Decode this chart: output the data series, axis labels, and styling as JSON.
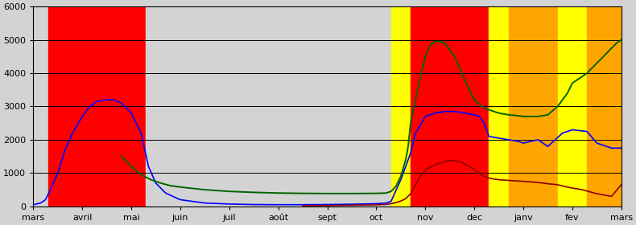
{
  "ylim": [
    0,
    6000
  ],
  "yticks": [
    0,
    1000,
    2000,
    3000,
    4000,
    5000,
    6000
  ],
  "xlabels": [
    "mars",
    "avril",
    "mai",
    "juin",
    "juil",
    "août",
    "sept",
    "oct",
    "nov",
    "dec",
    "janv",
    "fev",
    "mars"
  ],
  "bg_color": "#d3d3d3",
  "zones": [
    [
      0.0,
      0.3,
      "#d3d3d3"
    ],
    [
      0.3,
      2.3,
      "#ff0000"
    ],
    [
      2.3,
      7.3,
      "#d3d3d3"
    ],
    [
      7.3,
      7.7,
      "#ffff00"
    ],
    [
      7.7,
      9.3,
      "#ff0000"
    ],
    [
      9.3,
      9.7,
      "#ffff00"
    ],
    [
      9.7,
      10.7,
      "#ffa500"
    ],
    [
      10.7,
      11.3,
      "#ffff00"
    ],
    [
      11.3,
      12.0,
      "#ffa500"
    ]
  ],
  "blue_x": [
    0.0,
    0.15,
    0.25,
    0.35,
    0.5,
    0.65,
    0.8,
    1.0,
    1.15,
    1.3,
    1.5,
    1.65,
    1.8,
    2.0,
    2.2,
    2.35,
    2.5,
    2.7,
    3.0,
    3.5,
    4.0,
    4.5,
    5.0,
    5.5,
    6.0,
    6.5,
    7.0,
    7.2,
    7.3,
    7.5,
    7.65,
    7.7,
    7.8,
    8.0,
    8.2,
    8.4,
    8.6,
    8.8,
    9.0,
    9.1,
    9.2,
    9.3,
    9.5,
    9.7,
    9.9,
    10.0,
    10.3,
    10.5,
    10.8,
    11.0,
    11.3,
    11.5,
    11.8,
    12.0
  ],
  "blue_y": [
    50,
    100,
    200,
    500,
    1000,
    1700,
    2200,
    2700,
    3000,
    3150,
    3200,
    3200,
    3100,
    2800,
    2200,
    1200,
    700,
    400,
    200,
    100,
    70,
    55,
    50,
    50,
    55,
    65,
    80,
    100,
    150,
    800,
    1400,
    1600,
    2200,
    2700,
    2800,
    2850,
    2850,
    2800,
    2750,
    2700,
    2500,
    2100,
    2050,
    2000,
    1950,
    1900,
    2000,
    1800,
    2200,
    2300,
    2250,
    1900,
    1750,
    1750
  ],
  "green_x": [
    1.8,
    2.0,
    2.2,
    2.4,
    2.6,
    2.8,
    3.0,
    3.5,
    4.0,
    4.5,
    5.0,
    5.5,
    6.0,
    6.5,
    7.0,
    7.2,
    7.3,
    7.4,
    7.5,
    7.6,
    7.65,
    7.7,
    7.8,
    7.9,
    8.0,
    8.1,
    8.2,
    8.3,
    8.4,
    8.6,
    8.8,
    9.0,
    9.2,
    9.3,
    9.5,
    9.7,
    9.9,
    10.0,
    10.3,
    10.5,
    10.7,
    10.9,
    11.0,
    11.3,
    11.5,
    11.7,
    11.9,
    12.0
  ],
  "green_y": [
    1500,
    1200,
    950,
    800,
    700,
    620,
    580,
    500,
    450,
    420,
    400,
    390,
    385,
    385,
    390,
    400,
    450,
    600,
    900,
    1400,
    1800,
    2500,
    3200,
    3900,
    4500,
    4850,
    4950,
    4950,
    4900,
    4500,
    3800,
    3200,
    2950,
    2900,
    2800,
    2750,
    2720,
    2700,
    2700,
    2750,
    3000,
    3400,
    3700,
    4000,
    4300,
    4600,
    4900,
    5000
  ],
  "darkred_x": [
    5.5,
    6.0,
    6.5,
    7.0,
    7.2,
    7.3,
    7.4,
    7.5,
    7.6,
    7.7,
    7.8,
    7.9,
    8.0,
    8.2,
    8.4,
    8.5,
    8.7,
    8.9,
    9.0,
    9.1,
    9.2,
    9.3,
    9.4,
    9.5,
    9.7,
    9.9,
    10.0,
    10.2,
    10.4,
    10.5,
    10.7,
    10.9,
    11.0,
    11.2,
    11.4,
    11.5,
    11.8,
    12.0
  ],
  "darkred_y": [
    20,
    25,
    35,
    45,
    60,
    80,
    110,
    160,
    230,
    380,
    650,
    900,
    1100,
    1250,
    1350,
    1380,
    1350,
    1200,
    1100,
    1000,
    900,
    850,
    820,
    800,
    780,
    760,
    750,
    730,
    700,
    680,
    650,
    580,
    550,
    500,
    420,
    380,
    300,
    650
  ],
  "line_colors": {
    "blue": "#0000ff",
    "green": "#006400",
    "darkred": "#8b0000"
  }
}
